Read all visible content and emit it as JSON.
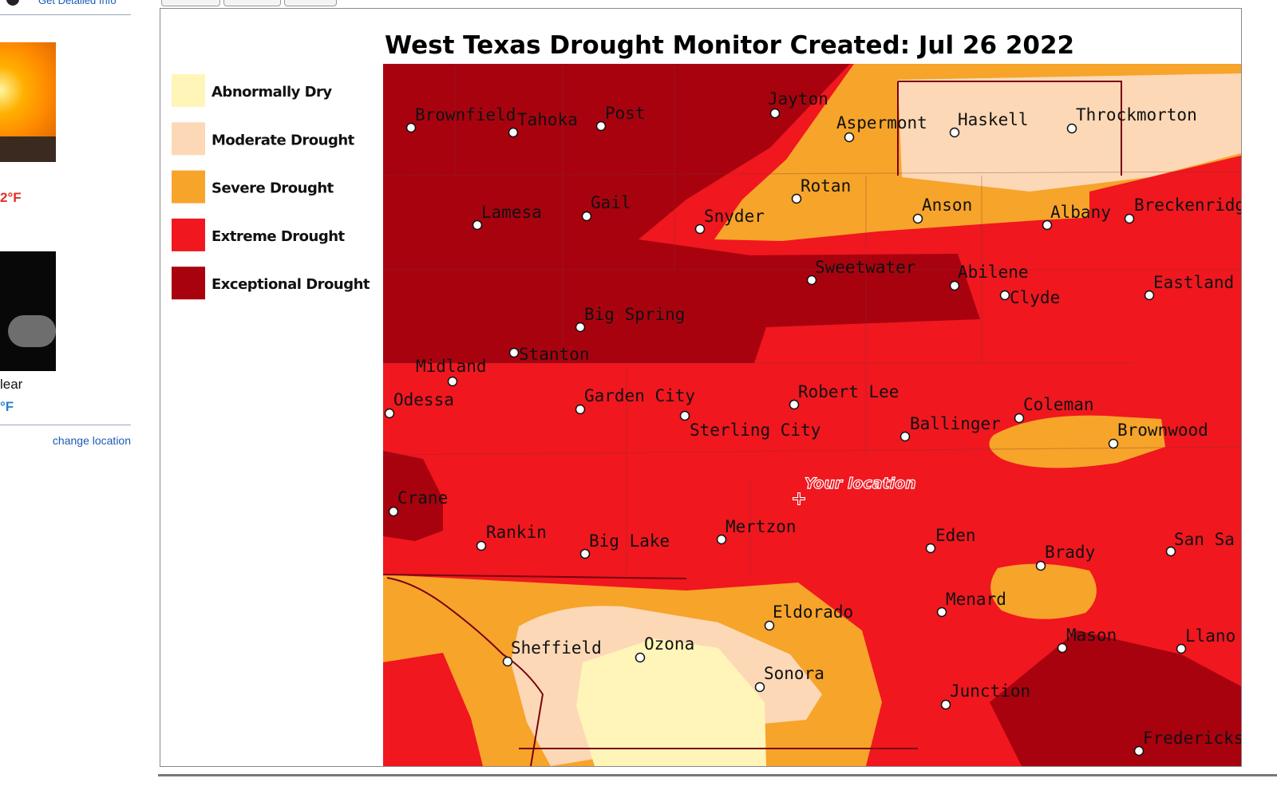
{
  "sidebar": {
    "link": "Get Detailed Info",
    "high_temp": "2°F",
    "condition": "lear",
    "low_temp": "°F",
    "change_location": "change location"
  },
  "map": {
    "title": "West Texas Drought Monitor Created: Jul 26 2022",
    "legend": [
      "Abnormally Dry",
      "Moderate Drought",
      "Severe Drought",
      "Extreme Drought",
      "Exceptional Drought"
    ],
    "your_location": "Your location",
    "cities": [
      "Brownfield",
      "Tahoka",
      "Post",
      "Jayton",
      "Aspermont",
      "Haskell",
      "Throckmorton",
      "Lamesa",
      "Gail",
      "Snyder",
      "Rotan",
      "Anson",
      "Albany",
      "Breckenridg",
      "Sweetwater",
      "Abilene",
      "Clyde",
      "Eastland",
      "Big Spring",
      "Stanton",
      "Midland",
      "Odessa",
      "Garden City",
      "Robert Lee",
      "Sterling City",
      "Ballinger",
      "Coleman",
      "Brownwood",
      "Crane",
      "Rankin",
      "Big Lake",
      "Mertzon",
      "Eden",
      "Brady",
      "San Sa",
      "Menard",
      "Eldorado",
      "Mason",
      "Llano",
      "Sheffield",
      "Ozona",
      "Sonora",
      "Junction",
      "Fredericks"
    ]
  }
}
